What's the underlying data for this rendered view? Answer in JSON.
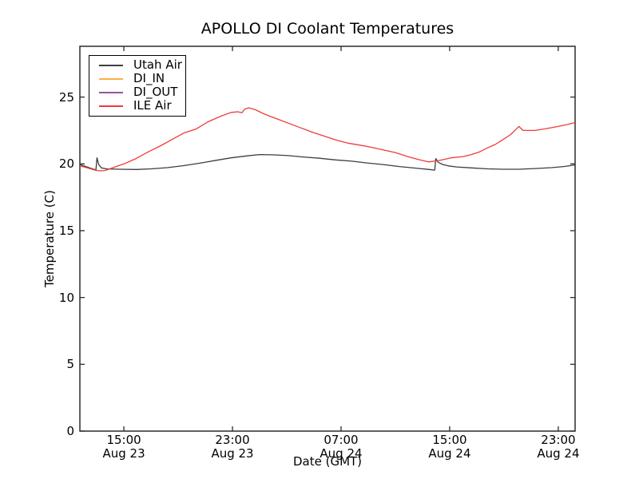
{
  "figure": {
    "background": "#ffffff",
    "frame_color": "#2b2b2b"
  },
  "chart_data": {
    "type": "line",
    "title": "APOLLO DI Coolant Temperatures",
    "xlabel": "Date (GMT)",
    "ylabel": "Temperature (C)",
    "x_unit_note": "hours since Aug 23 00:00 GMT",
    "xlim": [
      11.76,
      48.24
    ],
    "ylim": [
      0,
      28.8
    ],
    "grid": false,
    "legend_position": "upper left",
    "xticks": [
      {
        "value": 15,
        "time": "15:00",
        "date": "Aug 23"
      },
      {
        "value": 23,
        "time": "23:00",
        "date": "Aug 23"
      },
      {
        "value": 31,
        "time": "07:00",
        "date": "Aug 24"
      },
      {
        "value": 39,
        "time": "15:00",
        "date": "Aug 24"
      },
      {
        "value": 47,
        "time": "23:00",
        "date": "Aug 24"
      }
    ],
    "yticks": [
      0,
      5,
      10,
      15,
      20,
      25
    ],
    "series": [
      {
        "name": "Utah Air",
        "color": "#3d3d3d",
        "points": [
          [
            11.76,
            19.95
          ],
          [
            12.2,
            19.8
          ],
          [
            12.7,
            19.62
          ],
          [
            12.94,
            19.55
          ],
          [
            13.02,
            20.45
          ],
          [
            13.15,
            19.95
          ],
          [
            13.35,
            19.7
          ],
          [
            13.7,
            19.63
          ],
          [
            14.7,
            19.6
          ],
          [
            15.9,
            19.58
          ],
          [
            17.0,
            19.63
          ],
          [
            18.2,
            19.72
          ],
          [
            19.4,
            19.87
          ],
          [
            20.6,
            20.05
          ],
          [
            21.8,
            20.27
          ],
          [
            22.9,
            20.45
          ],
          [
            24.1,
            20.6
          ],
          [
            25.0,
            20.7
          ],
          [
            25.9,
            20.68
          ],
          [
            27.1,
            20.62
          ],
          [
            28.2,
            20.52
          ],
          [
            29.4,
            20.42
          ],
          [
            30.6,
            20.3
          ],
          [
            31.8,
            20.2
          ],
          [
            32.9,
            20.07
          ],
          [
            34.1,
            19.95
          ],
          [
            35.3,
            19.8
          ],
          [
            36.5,
            19.68
          ],
          [
            37.5,
            19.58
          ],
          [
            37.9,
            19.53
          ],
          [
            37.98,
            20.4
          ],
          [
            38.15,
            20.12
          ],
          [
            38.5,
            19.95
          ],
          [
            38.9,
            19.85
          ],
          [
            39.5,
            19.77
          ],
          [
            40.6,
            19.7
          ],
          [
            41.8,
            19.63
          ],
          [
            42.9,
            19.6
          ],
          [
            44.1,
            19.6
          ],
          [
            45.3,
            19.65
          ],
          [
            46.5,
            19.72
          ],
          [
            47.4,
            19.8
          ],
          [
            48.24,
            19.92
          ]
        ]
      },
      {
        "name": "DI_IN",
        "color": "#fbb040",
        "points": []
      },
      {
        "name": "DI_OUT",
        "color": "#9156a0",
        "points": []
      },
      {
        "name": "ILE Air",
        "color": "#ee3b3b",
        "points": [
          [
            11.76,
            19.85
          ],
          [
            12.3,
            19.7
          ],
          [
            12.8,
            19.55
          ],
          [
            13.2,
            19.48
          ],
          [
            13.6,
            19.5
          ],
          [
            14.1,
            19.68
          ],
          [
            15.0,
            20.0
          ],
          [
            15.9,
            20.4
          ],
          [
            16.8,
            20.9
          ],
          [
            17.6,
            21.3
          ],
          [
            18.5,
            21.8
          ],
          [
            19.4,
            22.3
          ],
          [
            20.3,
            22.6
          ],
          [
            21.2,
            23.15
          ],
          [
            22.1,
            23.55
          ],
          [
            22.9,
            23.85
          ],
          [
            23.4,
            23.9
          ],
          [
            23.7,
            23.82
          ],
          [
            23.9,
            24.1
          ],
          [
            24.2,
            24.2
          ],
          [
            24.7,
            24.05
          ],
          [
            25.3,
            23.75
          ],
          [
            26.2,
            23.4
          ],
          [
            27.1,
            23.05
          ],
          [
            27.9,
            22.75
          ],
          [
            28.8,
            22.4
          ],
          [
            29.7,
            22.1
          ],
          [
            30.6,
            21.8
          ],
          [
            31.5,
            21.55
          ],
          [
            32.4,
            21.4
          ],
          [
            33.2,
            21.25
          ],
          [
            34.1,
            21.05
          ],
          [
            35.0,
            20.85
          ],
          [
            35.9,
            20.55
          ],
          [
            36.8,
            20.3
          ],
          [
            37.45,
            20.15
          ],
          [
            38.2,
            20.25
          ],
          [
            39.1,
            20.45
          ],
          [
            40.0,
            20.55
          ],
          [
            40.6,
            20.7
          ],
          [
            41.2,
            20.9
          ],
          [
            41.8,
            21.2
          ],
          [
            42.35,
            21.45
          ],
          [
            42.9,
            21.8
          ],
          [
            43.5,
            22.2
          ],
          [
            43.9,
            22.6
          ],
          [
            44.1,
            22.8
          ],
          [
            44.4,
            22.5
          ],
          [
            45.3,
            22.5
          ],
          [
            46.2,
            22.65
          ],
          [
            47.0,
            22.8
          ],
          [
            47.7,
            22.95
          ],
          [
            48.24,
            23.1
          ]
        ]
      }
    ]
  }
}
